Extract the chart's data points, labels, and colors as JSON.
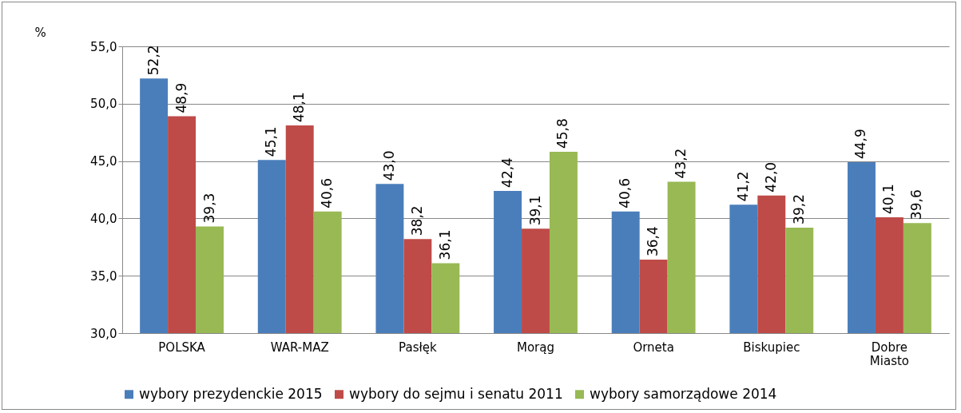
{
  "chart_data": {
    "type": "bar",
    "ylabel": "%",
    "categories": [
      "POLSKA",
      "WAR-MAZ",
      "Pasłęk",
      "Morąg",
      "Orneta",
      "Biskupiec",
      "Dobre Miasto"
    ],
    "series": [
      {
        "name": "wybory prezydenckie 2015",
        "color": "#4a7ebb",
        "values": [
          52.2,
          45.1,
          43.0,
          42.4,
          40.6,
          41.2,
          44.9
        ],
        "value_labels": [
          "52,2",
          "45,1",
          "43,0",
          "42,4",
          "40,6",
          "41,2",
          "44,9"
        ]
      },
      {
        "name": "wybory do sejmu i senatu 2011",
        "color": "#be4b48",
        "values": [
          48.9,
          48.1,
          38.2,
          39.1,
          36.4,
          42.0,
          40.1
        ],
        "value_labels": [
          "48,9",
          "48,1",
          "38,2",
          "39,1",
          "36,4",
          "42,0",
          "40,1"
        ]
      },
      {
        "name": "wybory samorządowe 2014",
        "color": "#98b954",
        "values": [
          39.3,
          40.6,
          36.1,
          45.8,
          43.2,
          39.2,
          39.6
        ],
        "value_labels": [
          "39,3",
          "40,6",
          "36,1",
          "45,8",
          "43,2",
          "39,2",
          "39,6"
        ]
      }
    ],
    "ylim": [
      30,
      55
    ],
    "yticks": [
      {
        "value": 30,
        "label": "30,0"
      },
      {
        "value": 35,
        "label": "35,0"
      },
      {
        "value": 40,
        "label": "40,0"
      },
      {
        "value": 45,
        "label": "45,0"
      },
      {
        "value": 50,
        "label": "50,0"
      },
      {
        "value": 55,
        "label": "55,0"
      }
    ],
    "grid": "y",
    "legend": "bottom"
  }
}
